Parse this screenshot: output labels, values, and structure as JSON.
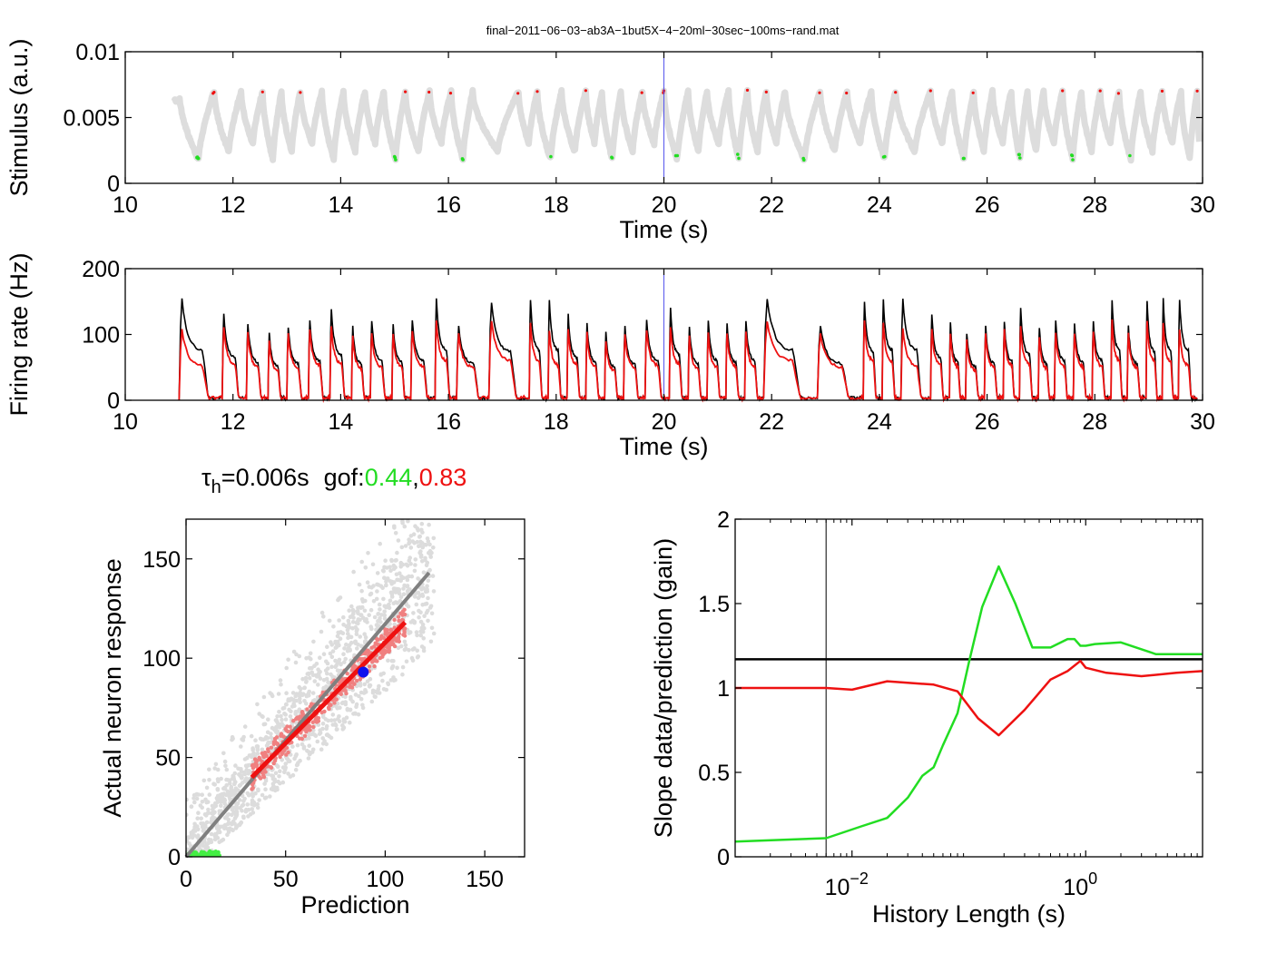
{
  "figure_title": "final−2011−06−03−ab3A−1but5X−4−20ml−30sec−100ms−rand.mat",
  "annotation": {
    "tau_symbol": "τ",
    "tau_sub": "h",
    "tau_value": "=0.006s",
    "gof_label": "gof:",
    "gof_green": "0.44",
    "gof_sep": ",",
    "gof_red": "0.83",
    "green_color": "#22dd22",
    "red_color": "#ee1111"
  },
  "chart_data": [
    {
      "type": "line",
      "id": "stimulus",
      "xlabel": "Time (s)",
      "ylabel": "Stimulus (a.u.)",
      "xlim": [
        10,
        30
      ],
      "ylim": [
        0,
        0.01
      ],
      "xticks": [
        10,
        12,
        14,
        16,
        18,
        20,
        22,
        24,
        26,
        28,
        30
      ],
      "xtick_labels": [
        "10",
        "12",
        "14",
        "16",
        "18",
        "20",
        "22",
        "24",
        "26",
        "28",
        "30"
      ],
      "yticks": [
        0,
        0.005,
        0.01
      ],
      "ytick_labels": [
        "0",
        "0.005",
        "0.01"
      ],
      "marker_line_x": 20,
      "colors": {
        "trace": "#dddddd",
        "high": "#ee1111",
        "low": "#22dd22",
        "marker": "#5555ee"
      },
      "pulse_starts": [
        11.0,
        11.65,
        12.15,
        12.55,
        12.9,
        13.25,
        13.65,
        14.05,
        14.45,
        14.8,
        15.2,
        15.65,
        16.05,
        16.45,
        17.3,
        17.65,
        18.1,
        18.55,
        18.85,
        19.2,
        19.6,
        20.0,
        20.45,
        20.8,
        21.2,
        21.55,
        21.9,
        22.25,
        22.9,
        23.4,
        23.85,
        24.3,
        24.95,
        25.35,
        25.75,
        26.1,
        26.45,
        26.75,
        27.05,
        27.4,
        27.75,
        28.1,
        28.45,
        28.85,
        29.25,
        29.6,
        29.9
      ],
      "high_level": 0.007,
      "low_level": 0.0018
    },
    {
      "type": "line",
      "id": "firing_rate",
      "xlabel": "Time (s)",
      "ylabel": "Firing rate (Hz)",
      "xlim": [
        10,
        30
      ],
      "ylim": [
        0,
        200
      ],
      "xticks": [
        10,
        12,
        14,
        16,
        18,
        20,
        22,
        24,
        26,
        28,
        30
      ],
      "xtick_labels": [
        "10",
        "12",
        "14",
        "16",
        "18",
        "20",
        "22",
        "24",
        "26",
        "28",
        "30"
      ],
      "yticks": [
        0,
        100,
        200
      ],
      "ytick_labels": [
        "0",
        "100",
        "200"
      ],
      "marker_line_x": 20,
      "series": [
        {
          "color": "#000000",
          "peaks": [
            165,
            140,
            125,
            110,
            120,
            130,
            150,
            120,
            130,
            125,
            130,
            165,
            120,
            160,
            165
          ]
        },
        {
          "color": "#ee1111",
          "peaks": [
            115,
            118,
            110,
            98,
            108,
            115,
            120,
            105,
            110,
            110,
            112,
            130,
            108,
            130,
            128
          ]
        }
      ],
      "burst_starts": [
        11.0,
        11.8,
        12.25,
        12.65,
        13.0,
        13.4,
        13.8,
        14.2,
        14.55,
        14.95,
        15.3,
        15.75,
        16.15,
        16.75,
        17.5,
        17.85,
        18.2,
        18.55,
        18.9,
        19.25,
        19.65,
        20.1,
        20.45,
        20.8,
        21.15,
        21.5,
        21.85,
        22.85,
        23.7,
        24.05,
        24.4,
        24.95,
        25.3,
        25.6,
        25.95,
        26.3,
        26.6,
        26.95,
        27.25,
        27.6,
        27.95,
        28.3,
        28.6,
        28.95,
        29.25,
        29.55
      ]
    },
    {
      "type": "scatter",
      "id": "prediction_vs_actual",
      "xlabel": "Prediction",
      "ylabel": "Actual neuron response",
      "xlim": [
        0,
        170
      ],
      "ylim": [
        0,
        170
      ],
      "xticks": [
        0,
        50,
        100,
        150
      ],
      "xtick_labels": [
        "0",
        "50",
        "100",
        "150"
      ],
      "yticks": [
        0,
        50,
        100,
        150
      ],
      "ytick_labels": [
        "0",
        "50",
        "100",
        "150"
      ],
      "unity_fit": {
        "x": [
          0,
          122
        ],
        "y": [
          0,
          143
        ],
        "color": "#808080"
      },
      "red_fit": {
        "x": [
          33,
          110
        ],
        "y": [
          40,
          118
        ],
        "color": "#ee1111"
      },
      "blue_point": {
        "x": 89,
        "y": 93,
        "color": "#1111ee"
      },
      "colors": {
        "all": "#dcdcdc",
        "high": "#f08080",
        "low": "#44ee44"
      }
    },
    {
      "type": "line",
      "id": "gain_vs_history",
      "xlabel": "History Length (s)",
      "ylabel": "Slope data/prediction (gain)",
      "xscale": "log",
      "xlim": [
        0.001,
        10
      ],
      "ylim": [
        0,
        2
      ],
      "xticks": [
        0.01,
        1
      ],
      "xtick_base": "10",
      "xtick_exponents": [
        "−2",
        "0"
      ],
      "yticks": [
        0,
        0.5,
        1,
        1.5,
        2
      ],
      "ytick_labels": [
        "0",
        "0.5",
        "1",
        "1.5",
        "2"
      ],
      "hline_y": 1.17,
      "vline_x": 0.006,
      "series": [
        {
          "color": "#22dd22",
          "x": [
            0.001,
            0.006,
            0.012,
            0.02,
            0.03,
            0.04,
            0.05,
            0.06,
            0.08,
            0.1,
            0.13,
            0.18,
            0.25,
            0.35,
            0.5,
            0.7,
            0.8,
            0.9,
            1.0,
            1.2,
            2.0,
            4.0,
            6.0,
            10.0
          ],
          "y": [
            0.09,
            0.11,
            0.18,
            0.23,
            0.35,
            0.48,
            0.53,
            0.66,
            0.85,
            1.15,
            1.48,
            1.72,
            1.5,
            1.24,
            1.24,
            1.29,
            1.29,
            1.25,
            1.25,
            1.26,
            1.27,
            1.2,
            1.2,
            1.2
          ]
        },
        {
          "color": "#ee1111",
          "x": [
            0.001,
            0.006,
            0.01,
            0.02,
            0.05,
            0.08,
            0.12,
            0.18,
            0.3,
            0.5,
            0.7,
            0.9,
            1.0,
            1.5,
            3.0,
            6.0,
            10.0
          ],
          "y": [
            1.0,
            1.0,
            0.99,
            1.04,
            1.02,
            0.98,
            0.82,
            0.72,
            0.87,
            1.05,
            1.1,
            1.16,
            1.12,
            1.09,
            1.07,
            1.09,
            1.1
          ]
        }
      ]
    }
  ]
}
